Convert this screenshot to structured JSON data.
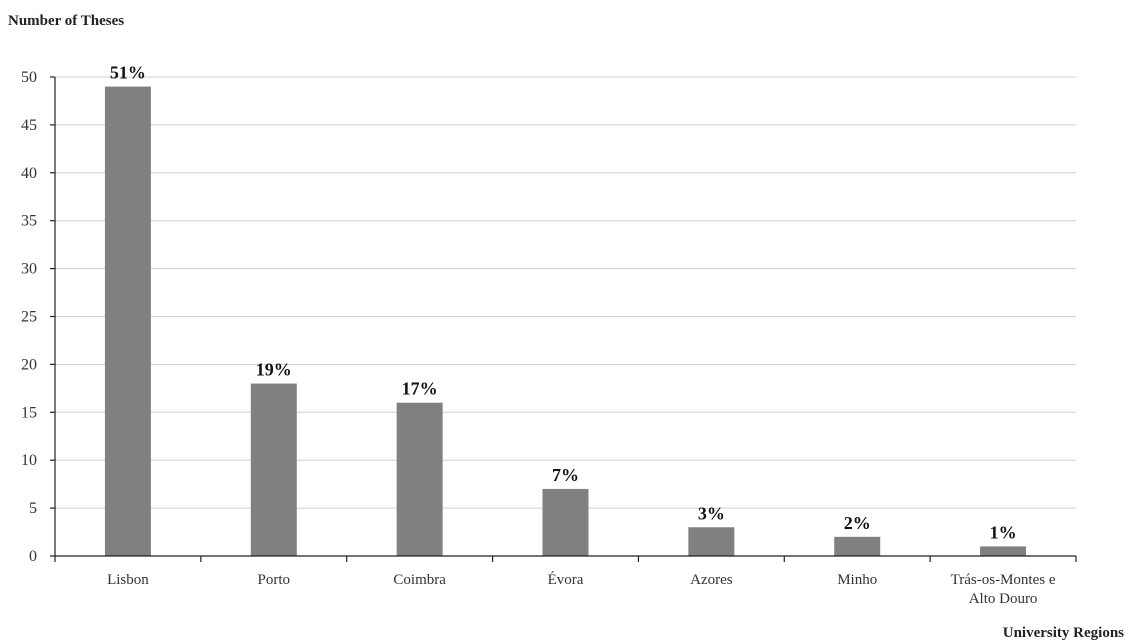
{
  "chart_data": {
    "type": "bar",
    "ylabel": "Number  of Theses",
    "xlabel": "University Regions",
    "categories": [
      [
        "Lisbon"
      ],
      [
        "Porto"
      ],
      [
        "Coimbra"
      ],
      [
        "Évora"
      ],
      [
        "Azores"
      ],
      [
        "Minho"
      ],
      [
        "Trás-os-Montes e",
        "Alto Douro"
      ]
    ],
    "values": [
      49,
      18,
      16,
      7,
      3,
      2,
      1
    ],
    "data_labels": [
      "51%",
      "19%",
      "17%",
      "7%",
      "3%",
      "2%",
      "1%"
    ],
    "ylim": [
      0,
      50
    ],
    "yticks": [
      0,
      5,
      10,
      15,
      20,
      25,
      30,
      35,
      40,
      45,
      50
    ],
    "bar_color": "#808080",
    "grid": true,
    "legend": "none"
  }
}
